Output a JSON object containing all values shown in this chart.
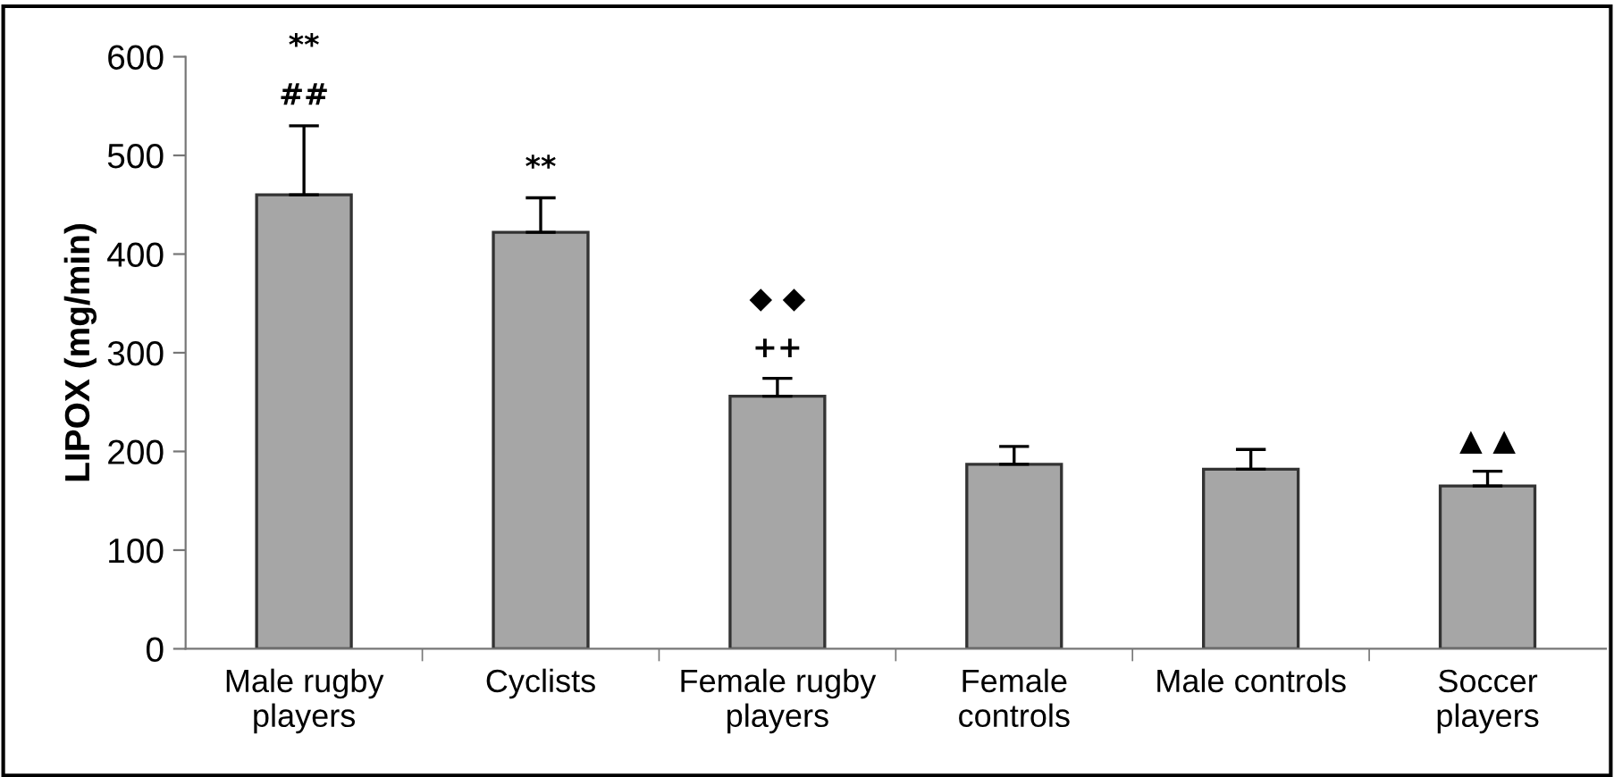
{
  "chart_data": {
    "type": "bar",
    "ylabel": "LIPOX (mg/min)",
    "categories": [
      "Male rugby\nplayers",
      "Cyclists",
      "Female rugby\nplayers",
      "Female\ncontrols",
      "Male controls",
      "Soccer\nplayers"
    ],
    "values": [
      460,
      422,
      256,
      187,
      182,
      165
    ],
    "errors": [
      [
        460,
        530
      ],
      [
        422,
        457
      ],
      [
        256,
        274
      ],
      [
        187,
        205
      ],
      [
        182,
        202
      ],
      [
        165,
        180
      ]
    ],
    "color": "#a6a6a6",
    "ylim": [
      0,
      600
    ],
    "yticks": [
      0,
      100,
      200,
      300,
      400,
      500,
      600
    ],
    "grid": false,
    "legend": false,
    "annotations": [
      "##",
      "**",
      "**",
      "++",
      "◆ ◆",
      "▲ ▲"
    ]
  }
}
